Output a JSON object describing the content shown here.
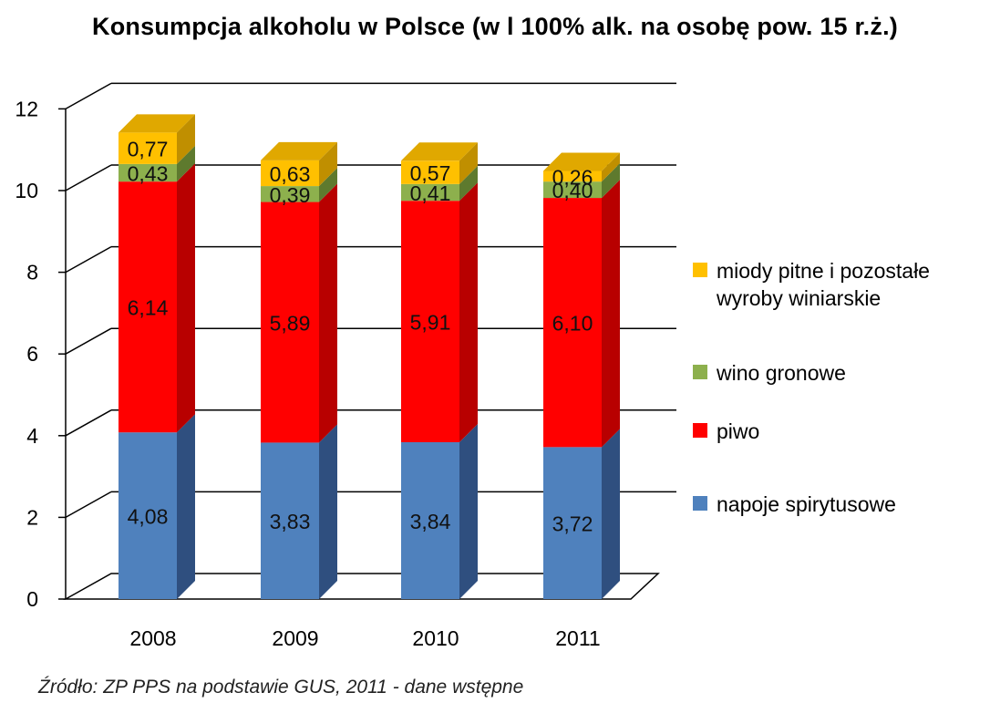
{
  "chart_data": {
    "type": "bar",
    "stacked": true,
    "three_d": true,
    "title": "Konsumpcja alkoholu  w Polsce (w l 100% alk. na osobę pow. 15 r.ż.)",
    "categories": [
      "2008",
      "2009",
      "2010",
      "2011"
    ],
    "series": [
      {
        "name": "napoje spirytusowe",
        "color": "#4F81BD",
        "side_color": "#2F4F7F",
        "top_color": "#6D97CF",
        "values": [
          4.08,
          3.83,
          3.84,
          3.72
        ],
        "labels": [
          "4,08",
          "3,83",
          "3,84",
          "3,72"
        ]
      },
      {
        "name": "piwo",
        "color": "#FF0000",
        "side_color": "#B80000",
        "top_color": "#FF4A4A",
        "values": [
          6.14,
          5.89,
          5.91,
          6.1
        ],
        "labels": [
          "6,14",
          "5,89",
          "5,91",
          "6,10"
        ]
      },
      {
        "name": "wino gronowe",
        "color": "#8DB04D",
        "side_color": "#5E7A2E",
        "top_color": "#A6C56A",
        "values": [
          0.43,
          0.39,
          0.41,
          0.4
        ],
        "labels": [
          "0,43",
          "0,39",
          "0,41",
          "0,40"
        ]
      },
      {
        "name": "miody pitne i pozostałe wyroby winiarskie",
        "color": "#FFC000",
        "side_color": "#C08F00",
        "top_color": "#E0A800",
        "values": [
          0.77,
          0.63,
          0.57,
          0.26
        ],
        "labels": [
          "0,77",
          "0,63",
          "0,57",
          "0,26"
        ]
      }
    ],
    "ylim": [
      0,
      12
    ],
    "yticks": [
      "0",
      "2",
      "4",
      "6",
      "8",
      "10",
      "12"
    ],
    "grid": true,
    "legend_position": "right",
    "source": "Źródło: ZP PPS na podstawie GUS, 2011 - dane wstępne"
  }
}
